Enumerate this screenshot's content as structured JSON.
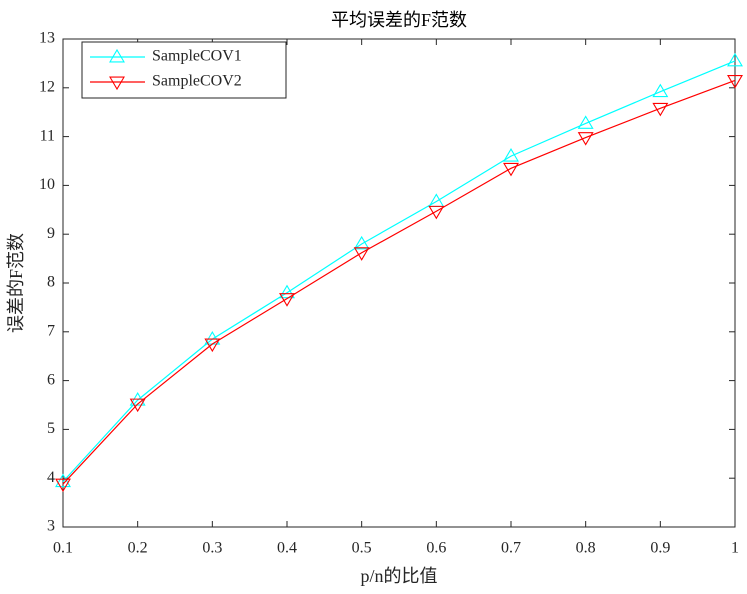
{
  "chart_data": {
    "type": "line",
    "title": "平均误差的F范数",
    "x_label": "p/n的比值",
    "y_label": "误差的F范数",
    "x": [
      0.1,
      0.2,
      0.3,
      0.4,
      0.5,
      0.6,
      0.7,
      0.8,
      0.9,
      1
    ],
    "series": [
      {
        "name": "SampleCOV1",
        "color": "#00ffff",
        "marker": "triangle-up",
        "values": [
          3.93,
          5.6,
          6.85,
          7.8,
          8.8,
          9.67,
          10.6,
          11.27,
          11.92,
          12.55
        ]
      },
      {
        "name": "SampleCOV2",
        "color": "#ff0000",
        "marker": "triangle-down",
        "values": [
          3.88,
          5.52,
          6.75,
          7.68,
          8.62,
          9.47,
          10.35,
          10.98,
          11.58,
          12.15
        ]
      }
    ],
    "xlim": [
      0.1,
      1
    ],
    "xticks": [
      0.1,
      0.2,
      0.3,
      0.4,
      0.5,
      0.6,
      0.7,
      0.8,
      0.9,
      1
    ],
    "ylim": [
      3,
      13
    ],
    "yticks": [
      3,
      4,
      5,
      6,
      7,
      8,
      9,
      10,
      11,
      12,
      13
    ],
    "grid": false,
    "legend": "upper-left"
  }
}
